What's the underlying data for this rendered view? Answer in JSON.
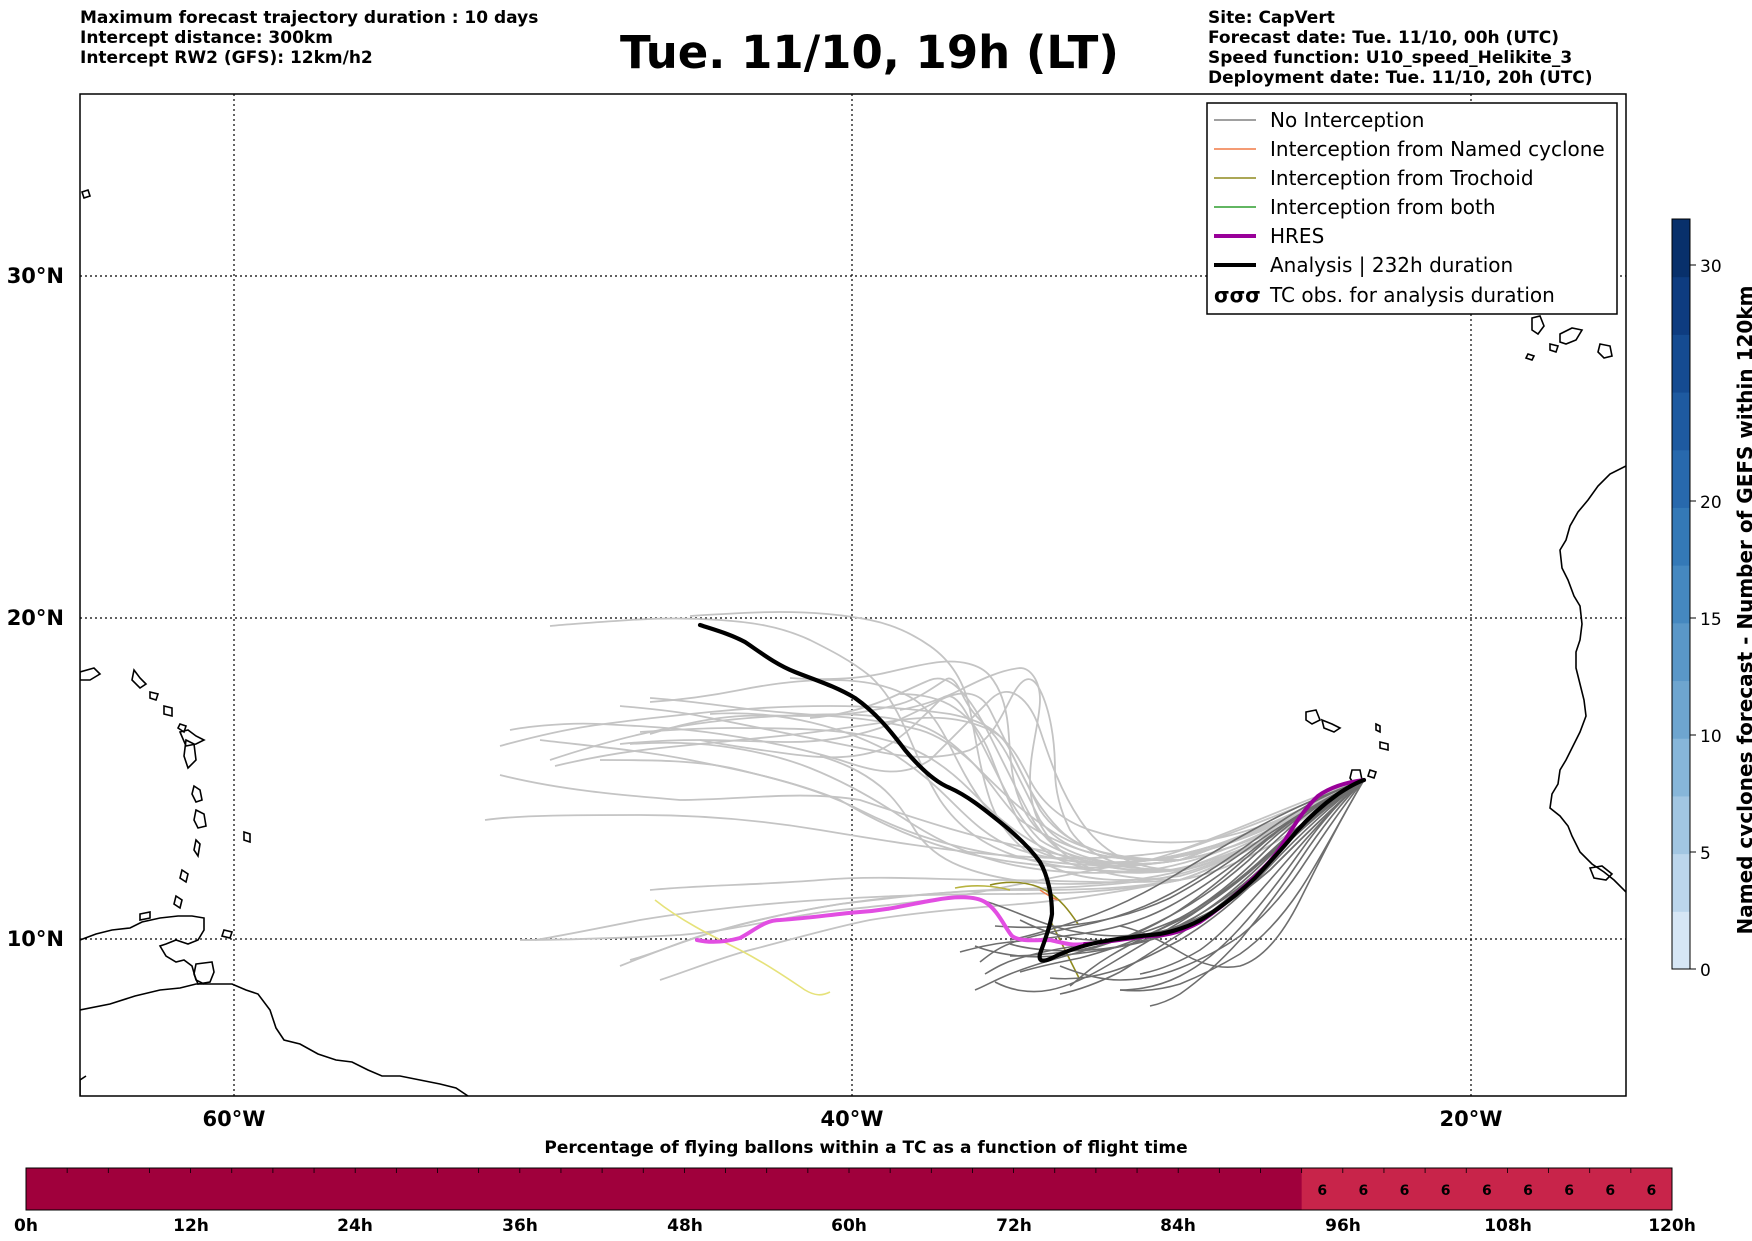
{
  "header": {
    "left_lines": [
      "Maximum forecast trajectory duration : 10 days",
      "Intercept distance: 300km",
      "Intercept RW2 (GFS):  12km/h2"
    ],
    "title": "Tue. 11/10, 19h (LT)",
    "right_lines": [
      "Site: CapVert",
      "Forecast date: Tue. 11/10, 00h (UTC)",
      "Speed function: U10_speed_Helikite_3",
      "Deployment date: Tue. 11/10, 20h (UTC)"
    ]
  },
  "map": {
    "lat_labels": [
      "30°N",
      "20°N",
      "10°N"
    ],
    "lon_labels": [
      "60°W",
      "40°W",
      "20°W"
    ]
  },
  "legend": {
    "items": [
      {
        "label": "No Interception",
        "color": "#808080",
        "width": 1.5
      },
      {
        "label": "Interception from Named cyclone",
        "color": "#f07a46",
        "width": 1.5
      },
      {
        "label": "Interception from Trochoid",
        "color": "#8f8a1e",
        "width": 1.5
      },
      {
        "label": "Interception from both",
        "color": "#2e9e2e",
        "width": 1.5
      },
      {
        "label": "HRES",
        "color": "#990099",
        "width": 4
      },
      {
        "label": "Analysis | 232h duration",
        "color": "#000000",
        "width": 4
      }
    ],
    "tc_symbol": "σσσ",
    "tc_label": "TC obs. for analysis duration"
  },
  "colorbar": {
    "label": "Named cyclones forecast - Number of GEFS within 120km",
    "ticks": [
      "0",
      "5",
      "10",
      "15",
      "20",
      "30"
    ],
    "colors": [
      "#d6e6f5",
      "#bcd6ec",
      "#a2c6e2",
      "#87b6d9",
      "#6ea5cf",
      "#5a97c8",
      "#4588c0",
      "#3479b7",
      "#2869ad",
      "#1e5aa0",
      "#154b91",
      "#0e3c80",
      "#08306b"
    ]
  },
  "timebar": {
    "title": "Percentage of flying ballons within a TC as a function of flight time",
    "ticks": [
      "0h",
      "12h",
      "24h",
      "36h",
      "48h",
      "60h",
      "72h",
      "84h",
      "96h",
      "108h",
      "120h"
    ],
    "base_color": "#a0003c",
    "highlight_color": "#c8244a",
    "cell_labels": [
      "6",
      "6",
      "6",
      "6",
      "6",
      "6",
      "6",
      "6",
      "6"
    ]
  }
}
